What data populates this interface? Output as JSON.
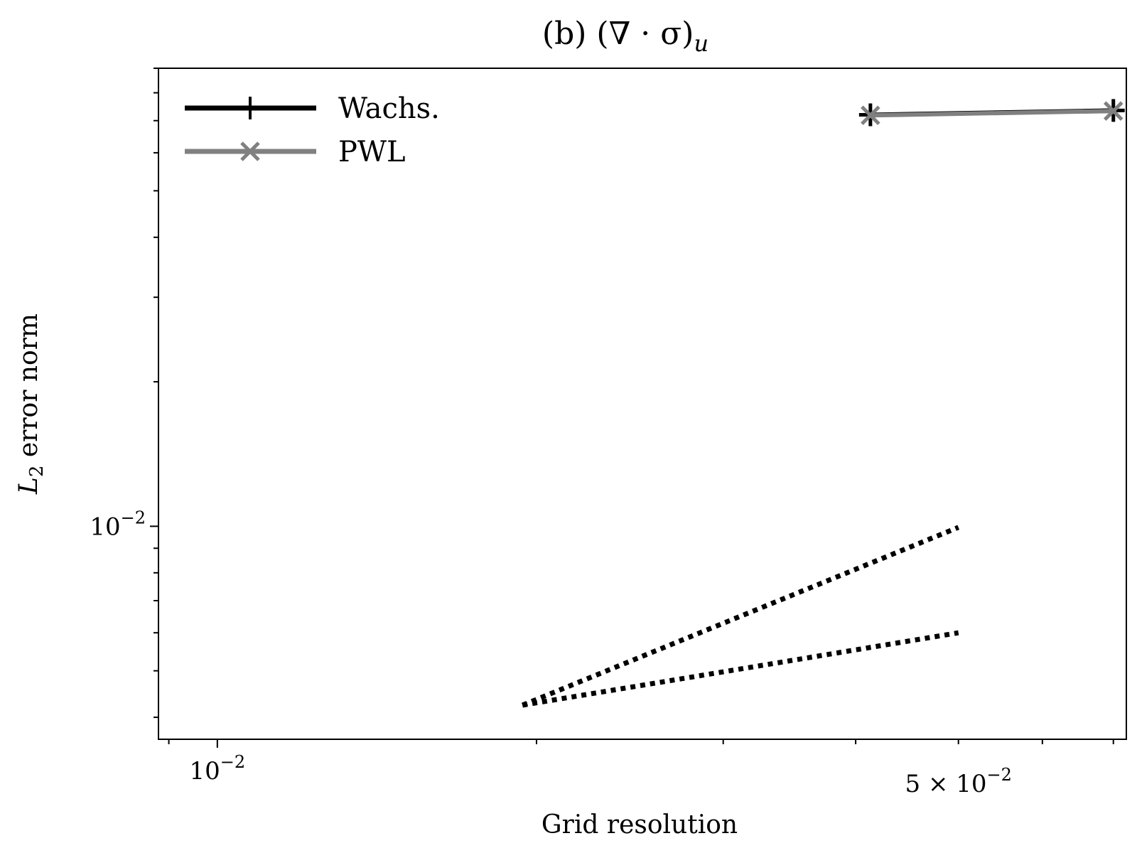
{
  "chart_data": {
    "type": "line",
    "title": "(b) (∇ · σ)",
    "title_subscript": "u",
    "xlabel": "Grid resolution",
    "ylabel": "L",
    "ylabel_subscript": "2",
    "ylabel_rest": " error norm",
    "x_scale": "log",
    "y_scale": "log",
    "xlim": [
      0.0088,
      0.072
    ],
    "ylim": [
      0.0036,
      0.09
    ],
    "x_ticks": [
      {
        "value": 0.01,
        "base": "10",
        "exp": "−2",
        "prefix": ""
      },
      {
        "value": 0.05,
        "base": "10",
        "exp": "−2",
        "prefix": "5 × "
      }
    ],
    "y_ticks": [
      {
        "value": 0.01,
        "base": "10",
        "exp": "−2"
      }
    ],
    "legend_position": "upper-left",
    "grid": false,
    "series": [
      {
        "name": "Wachs.",
        "color": "#000000",
        "marker": "plus",
        "x": [
          0.0413,
          0.07
        ],
        "y": [
          0.072,
          0.0735
        ]
      },
      {
        "name": "PWL",
        "color": "#808080",
        "marker": "x",
        "x": [
          0.0413,
          0.07
        ],
        "y": [
          0.0718,
          0.0733
        ]
      }
    ],
    "reference_lines": [
      {
        "style": "dotted",
        "x": [
          0.0194,
          0.05
        ],
        "y": [
          0.00424,
          0.00995
        ]
      },
      {
        "style": "dotted",
        "x": [
          0.0194,
          0.05
        ],
        "y": [
          0.00424,
          0.006
        ]
      }
    ]
  }
}
